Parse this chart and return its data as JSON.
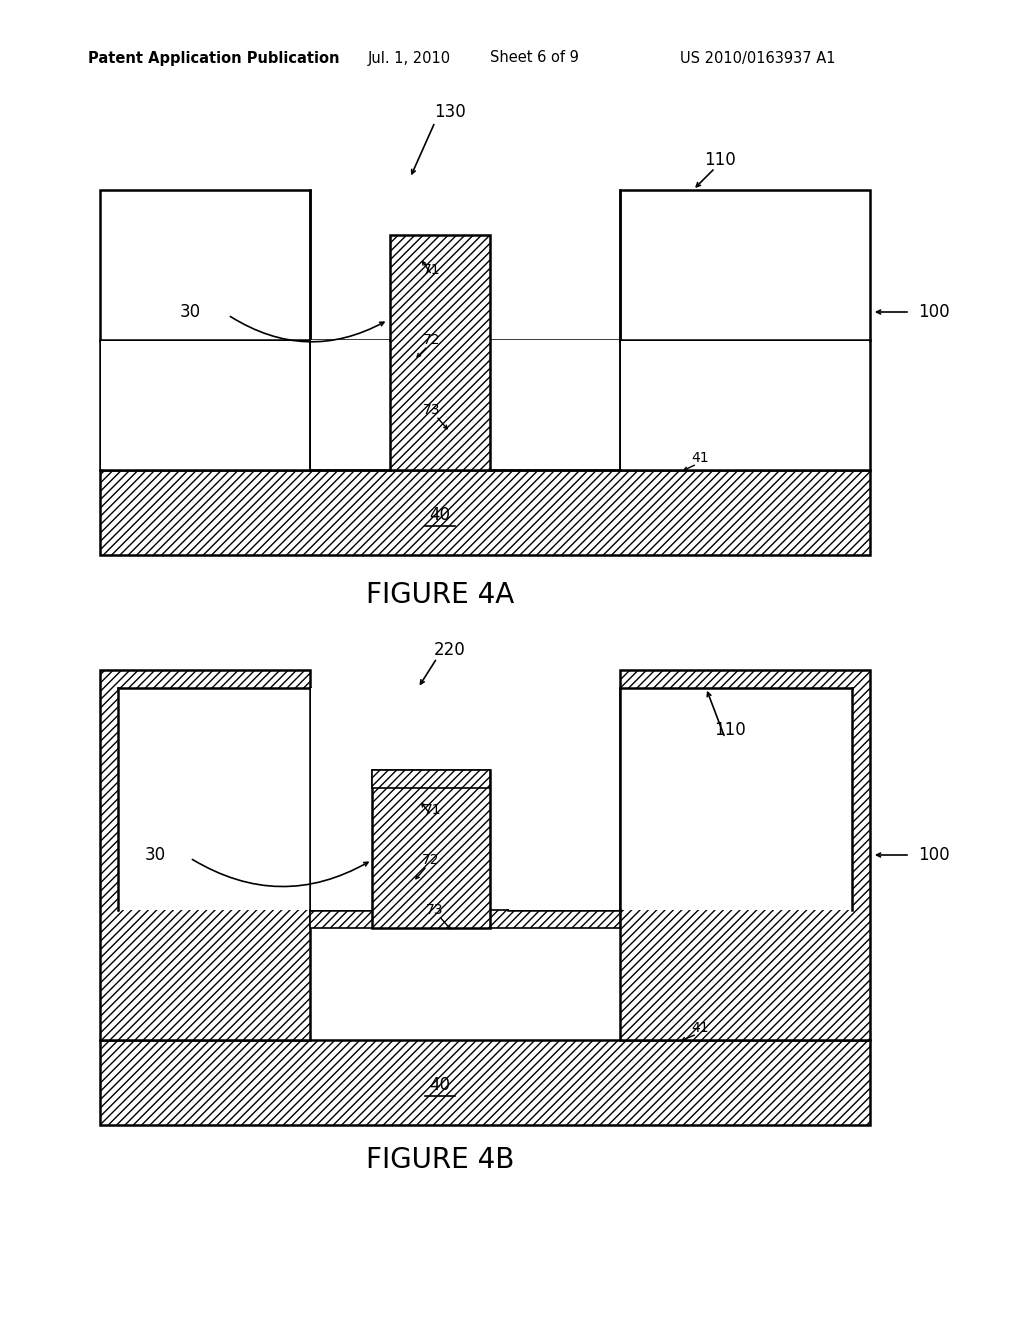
{
  "bg_color": "#ffffff",
  "line_color": "#000000",
  "fig4a_caption": "FIGURE 4A",
  "fig4b_caption": "FIGURE 4B",
  "header": {
    "left": "Patent Application Publication",
    "mid1": "Jul. 1, 2010",
    "mid2": "Sheet 6 of 9",
    "right": "US 2010/0163937 A1"
  }
}
